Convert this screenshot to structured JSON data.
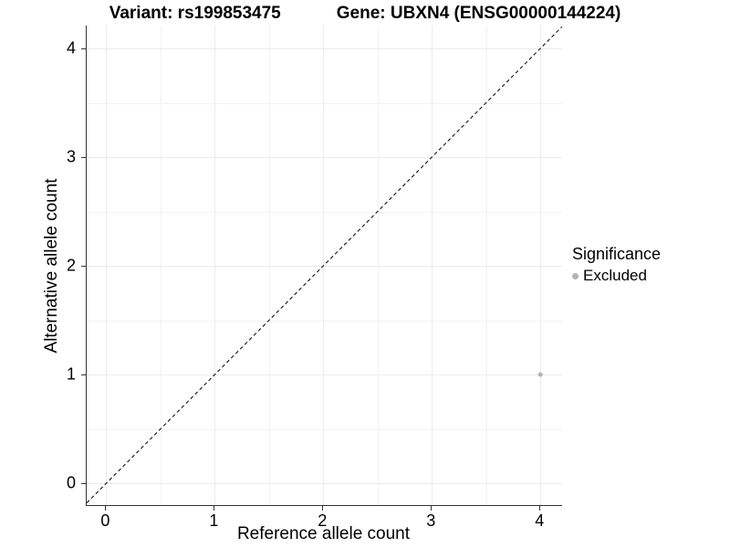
{
  "title": {
    "variant": "Variant: rs199853475",
    "gene": "Gene: UBXN4 (ENSG00000144224)"
  },
  "axes": {
    "x": {
      "label": "Reference allele count"
    },
    "y": {
      "label": "Alternative allele count"
    }
  },
  "legend": {
    "title": "Significance",
    "items": [
      {
        "label": "Excluded",
        "color": "#b3b3b3"
      }
    ]
  },
  "chart_data": {
    "type": "scatter",
    "title": "Variant: rs199853475    Gene: UBXN4 (ENSG00000144224)",
    "xlabel": "Reference allele count",
    "ylabel": "Alternative allele count",
    "xlim": [
      -0.18,
      4.2
    ],
    "ylim": [
      -0.2,
      4.21
    ],
    "x_ticks": [
      0,
      1,
      2,
      3,
      4
    ],
    "y_ticks": [
      0,
      1,
      2,
      3,
      4
    ],
    "grid": {
      "major": true,
      "minor": true,
      "major_color": "#ebebeb",
      "minor_color": "#f2f2f2"
    },
    "identity_line": {
      "show": true,
      "style": "dashed",
      "color": "#000000",
      "dash": "4 3"
    },
    "series": [
      {
        "name": "Excluded",
        "color": "#b3b3b3",
        "points": [
          {
            "x": 4,
            "y": 1
          }
        ]
      }
    ],
    "legend": {
      "title": "Significance",
      "position": "right"
    },
    "axis_color": "#333333",
    "point_radius": 2.5,
    "legend_point_radius": 3.5
  }
}
